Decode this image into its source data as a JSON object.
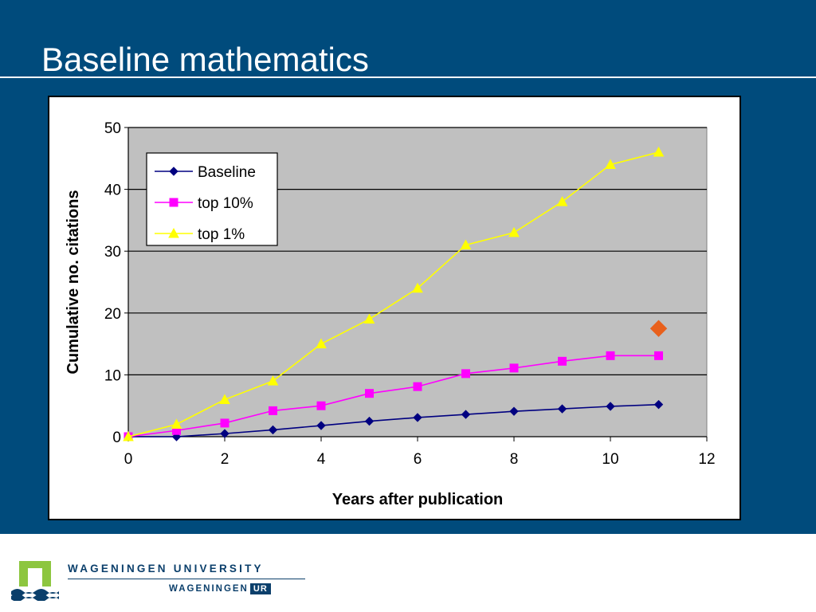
{
  "slide": {
    "title": "Baseline mathematics"
  },
  "footer": {
    "university": "WAGENINGEN UNIVERSITY",
    "ur_prefix": "WAGENINGEN",
    "ur_badge": "UR",
    "colors": {
      "green": "#8dc63f",
      "navy": "#0b3f6b"
    }
  },
  "chart_data": {
    "type": "line",
    "xlabel": "Years after publication",
    "ylabel": "Cumulative no. citations",
    "xlim": [
      0,
      12
    ],
    "ylim": [
      0,
      50
    ],
    "xticks": [
      "0",
      "2",
      "4",
      "6",
      "8",
      "10",
      "12"
    ],
    "yticks": [
      "0",
      "10",
      "20",
      "30",
      "40",
      "50"
    ],
    "grid": "horizontal",
    "plot_background": "#c0c0c0",
    "legend_position": "top-left",
    "series": [
      {
        "name": "Baseline",
        "color": "#000080",
        "marker": "diamond",
        "x": [
          0,
          1,
          2,
          3,
          4,
          5,
          6,
          7,
          8,
          9,
          10,
          11
        ],
        "values": [
          0,
          0,
          0.5,
          1.1,
          1.8,
          2.5,
          3.1,
          3.6,
          4.1,
          4.5,
          4.9,
          5.2
        ]
      },
      {
        "name": "top 10%",
        "color": "#ff00ff",
        "marker": "square",
        "x": [
          0,
          1,
          2,
          3,
          4,
          5,
          6,
          7,
          8,
          9,
          10,
          11
        ],
        "values": [
          0,
          1,
          2.2,
          4.2,
          5,
          7,
          8.1,
          10.2,
          11.1,
          12.2,
          13.1,
          13.1
        ]
      },
      {
        "name": "top 1%",
        "color": "#ffff00",
        "marker": "triangle",
        "x": [
          0,
          1,
          2,
          3,
          4,
          5,
          6,
          7,
          8,
          9,
          10,
          11
        ],
        "values": [
          0,
          2,
          6,
          9,
          15,
          19,
          24,
          31,
          33,
          38,
          44,
          46
        ]
      }
    ],
    "annotations": [
      {
        "type": "point",
        "x": 11,
        "y": 17.5,
        "marker": "diamond",
        "color": "#e8601c"
      }
    ]
  }
}
